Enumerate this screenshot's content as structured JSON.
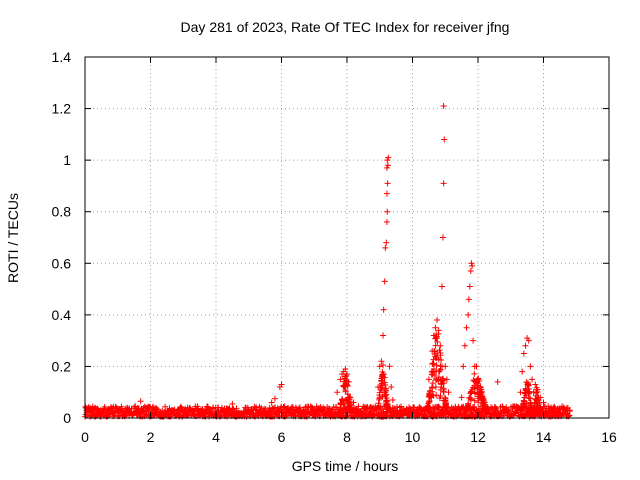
{
  "chart_data": {
    "type": "scatter",
    "title": "Day 281 of 2023, Rate Of TEC Index for receiver jfng",
    "xlabel": "GPS time / hours",
    "ylabel": "ROTI / TECUs",
    "xlim": [
      0,
      16
    ],
    "ylim": [
      0,
      1.4
    ],
    "x_ticks": [
      0,
      2,
      4,
      6,
      8,
      10,
      12,
      14,
      16
    ],
    "y_ticks": [
      0,
      0.2,
      0.4,
      0.6,
      0.8,
      1,
      1.2,
      1.4
    ],
    "x_tick_labels": [
      "0",
      "2",
      "4",
      "6",
      "8",
      "10",
      "12",
      "14",
      "16"
    ],
    "y_tick_labels": [
      "0",
      "0.2",
      "0.4",
      "0.6",
      "0.8",
      "1",
      "1.2",
      "1.4"
    ],
    "grid": true,
    "marker": "+",
    "marker_color": "#ff0000",
    "series": [
      {
        "name": "ROTI",
        "baseline": {
          "x_start": 0.0,
          "x_end": 14.8,
          "y_min": 0.005,
          "y_max": 0.045
        },
        "points": [
          {
            "x": 1.7,
            "y": 0.065
          },
          {
            "x": 4.5,
            "y": 0.055
          },
          {
            "x": 5.7,
            "y": 0.06
          },
          {
            "x": 5.8,
            "y": 0.075
          },
          {
            "x": 5.95,
            "y": 0.12
          },
          {
            "x": 6.0,
            "y": 0.13
          },
          {
            "x": 7.7,
            "y": 0.1
          },
          {
            "x": 7.8,
            "y": 0.15
          },
          {
            "x": 7.85,
            "y": 0.17
          },
          {
            "x": 7.9,
            "y": 0.18
          },
          {
            "x": 7.95,
            "y": 0.19
          },
          {
            "x": 8.0,
            "y": 0.17
          },
          {
            "x": 8.05,
            "y": 0.14
          },
          {
            "x": 8.1,
            "y": 0.08
          },
          {
            "x": 8.2,
            "y": 0.06
          },
          {
            "x": 8.95,
            "y": 0.12
          },
          {
            "x": 9.0,
            "y": 0.2
          },
          {
            "x": 9.05,
            "y": 0.22
          },
          {
            "x": 9.1,
            "y": 0.32
          },
          {
            "x": 9.12,
            "y": 0.42
          },
          {
            "x": 9.15,
            "y": 0.53
          },
          {
            "x": 9.17,
            "y": 0.66
          },
          {
            "x": 9.2,
            "y": 0.68
          },
          {
            "x": 9.22,
            "y": 0.76
          },
          {
            "x": 9.23,
            "y": 0.8
          },
          {
            "x": 9.22,
            "y": 0.87
          },
          {
            "x": 9.24,
            "y": 0.91
          },
          {
            "x": 9.22,
            "y": 0.97
          },
          {
            "x": 9.25,
            "y": 0.98
          },
          {
            "x": 9.23,
            "y": 1.0
          },
          {
            "x": 9.26,
            "y": 1.01
          },
          {
            "x": 9.3,
            "y": 0.2
          },
          {
            "x": 9.35,
            "y": 0.12
          },
          {
            "x": 9.4,
            "y": 0.07
          },
          {
            "x": 10.5,
            "y": 0.15
          },
          {
            "x": 10.6,
            "y": 0.26
          },
          {
            "x": 10.65,
            "y": 0.32
          },
          {
            "x": 10.7,
            "y": 0.35
          },
          {
            "x": 10.75,
            "y": 0.38
          },
          {
            "x": 10.8,
            "y": 0.34
          },
          {
            "x": 10.85,
            "y": 0.28
          },
          {
            "x": 10.9,
            "y": 0.51
          },
          {
            "x": 10.93,
            "y": 0.7
          },
          {
            "x": 10.95,
            "y": 0.91
          },
          {
            "x": 10.97,
            "y": 1.08
          },
          {
            "x": 10.95,
            "y": 1.21
          },
          {
            "x": 11.0,
            "y": 0.2
          },
          {
            "x": 11.05,
            "y": 0.15
          },
          {
            "x": 11.1,
            "y": 0.1
          },
          {
            "x": 11.5,
            "y": 0.08
          },
          {
            "x": 11.55,
            "y": 0.2
          },
          {
            "x": 11.6,
            "y": 0.28
          },
          {
            "x": 11.65,
            "y": 0.35
          },
          {
            "x": 11.7,
            "y": 0.4
          },
          {
            "x": 11.72,
            "y": 0.46
          },
          {
            "x": 11.75,
            "y": 0.51
          },
          {
            "x": 11.78,
            "y": 0.57
          },
          {
            "x": 11.8,
            "y": 0.6
          },
          {
            "x": 11.82,
            "y": 0.59
          },
          {
            "x": 11.85,
            "y": 0.3
          },
          {
            "x": 11.9,
            "y": 0.2
          },
          {
            "x": 12.0,
            "y": 0.15
          },
          {
            "x": 12.1,
            "y": 0.1
          },
          {
            "x": 12.2,
            "y": 0.06
          },
          {
            "x": 12.6,
            "y": 0.14
          },
          {
            "x": 13.3,
            "y": 0.1
          },
          {
            "x": 13.35,
            "y": 0.18
          },
          {
            "x": 13.4,
            "y": 0.25
          },
          {
            "x": 13.45,
            "y": 0.28
          },
          {
            "x": 13.5,
            "y": 0.31
          },
          {
            "x": 13.55,
            "y": 0.3
          },
          {
            "x": 13.6,
            "y": 0.2
          },
          {
            "x": 13.65,
            "y": 0.15
          },
          {
            "x": 13.7,
            "y": 0.1
          },
          {
            "x": 13.75,
            "y": 0.13
          },
          {
            "x": 13.8,
            "y": 0.11
          },
          {
            "x": 13.9,
            "y": 0.08
          },
          {
            "x": 14.0,
            "y": 0.06
          },
          {
            "x": 14.3,
            "y": 0.04
          },
          {
            "x": 14.5,
            "y": 0.035
          },
          {
            "x": 14.8,
            "y": 0.03
          }
        ],
        "clusters": [
          {
            "x_center": 7.95,
            "x_spread": 0.18,
            "y_min": 0.03,
            "y_max": 0.19,
            "count": 60
          },
          {
            "x_center": 9.1,
            "x_spread": 0.15,
            "y_min": 0.04,
            "y_max": 0.22,
            "count": 60
          },
          {
            "x_center": 10.75,
            "x_spread": 0.3,
            "y_min": 0.03,
            "y_max": 0.38,
            "count": 110
          },
          {
            "x_center": 11.95,
            "x_spread": 0.3,
            "y_min": 0.03,
            "y_max": 0.21,
            "count": 80
          },
          {
            "x_center": 13.5,
            "x_spread": 0.15,
            "y_min": 0.03,
            "y_max": 0.17,
            "count": 50
          },
          {
            "x_center": 13.8,
            "x_spread": 0.12,
            "y_min": 0.02,
            "y_max": 0.13,
            "count": 40
          }
        ]
      }
    ]
  }
}
